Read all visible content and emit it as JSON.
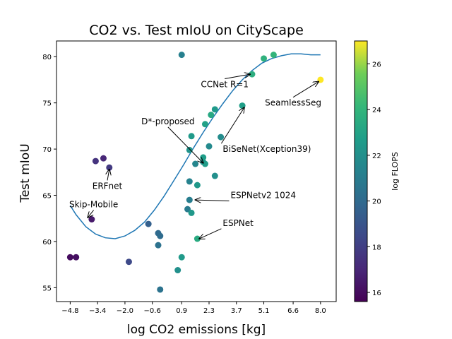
{
  "chart_data": {
    "type": "scatter",
    "title": "CO2 vs. Test mIoU on CityScape",
    "xlabel": "log CO2 emissions [kg]",
    "ylabel": "Test mIoU",
    "xlim": [
      -5.5,
      8.8
    ],
    "ylim": [
      53.5,
      81.7
    ],
    "xticks": [
      -4.8,
      -3.4,
      -2.0,
      -0.6,
      0.9,
      2.3,
      3.7,
      5.1,
      6.6,
      8.0
    ],
    "xtick_labels": [
      "−4.8",
      "−3.4",
      "−2.0",
      "−0.6",
      "0.9",
      "2.3",
      "3.7",
      "5.1",
      "6.6",
      "8.0"
    ],
    "yticks": [
      55,
      60,
      65,
      70,
      75,
      80
    ],
    "ytick_labels": [
      "55",
      "60",
      "65",
      "70",
      "75",
      "80"
    ],
    "grid": false,
    "colorbar": {
      "label": "log FLOPS",
      "range": [
        15.6,
        27.0
      ],
      "ticks": [
        16,
        18,
        20,
        22,
        24,
        26
      ],
      "tick_labels": [
        "16",
        "18",
        "20",
        "22",
        "24",
        "26"
      ],
      "colormap": "viridis"
    },
    "points": [
      {
        "x": -4.8,
        "y": 58.3,
        "c": 16.0
      },
      {
        "x": -4.5,
        "y": 58.3,
        "c": 16.1
      },
      {
        "x": -3.7,
        "y": 62.4,
        "c": 16.5
      },
      {
        "x": -3.5,
        "y": 68.7,
        "c": 17.5
      },
      {
        "x": -3.1,
        "y": 69.0,
        "c": 17.0
      },
      {
        "x": -2.8,
        "y": 68.0,
        "c": 17.8
      },
      {
        "x": -1.8,
        "y": 57.8,
        "c": 18.5
      },
      {
        "x": -0.8,
        "y": 61.9,
        "c": 19.5
      },
      {
        "x": -0.3,
        "y": 60.9,
        "c": 20.0
      },
      {
        "x": -0.2,
        "y": 60.6,
        "c": 20.1
      },
      {
        "x": -0.3,
        "y": 59.6,
        "c": 20.4
      },
      {
        "x": -0.2,
        "y": 54.8,
        "c": 20.5
      },
      {
        "x": 0.9,
        "y": 80.2,
        "c": 21.2
      },
      {
        "x": 0.7,
        "y": 56.9,
        "c": 22.0
      },
      {
        "x": 0.9,
        "y": 58.3,
        "c": 22.5
      },
      {
        "x": 1.2,
        "y": 63.5,
        "c": 20.9
      },
      {
        "x": 1.3,
        "y": 64.5,
        "c": 21.0
      },
      {
        "x": 1.3,
        "y": 66.5,
        "c": 21.3
      },
      {
        "x": 1.4,
        "y": 63.1,
        "c": 22.4
      },
      {
        "x": 1.3,
        "y": 69.9,
        "c": 22.2
      },
      {
        "x": 1.4,
        "y": 71.4,
        "c": 22.5
      },
      {
        "x": 1.6,
        "y": 68.4,
        "c": 21.5
      },
      {
        "x": 1.7,
        "y": 66.1,
        "c": 22.4
      },
      {
        "x": 1.7,
        "y": 60.3,
        "c": 23.4
      },
      {
        "x": 2.0,
        "y": 68.6,
        "c": 21.9
      },
      {
        "x": 2.0,
        "y": 69.1,
        "c": 22.7
      },
      {
        "x": 2.1,
        "y": 68.4,
        "c": 22.6
      },
      {
        "x": 2.1,
        "y": 72.7,
        "c": 22.9
      },
      {
        "x": 2.3,
        "y": 70.3,
        "c": 21.7
      },
      {
        "x": 2.4,
        "y": 73.7,
        "c": 23.3
      },
      {
        "x": 2.6,
        "y": 74.3,
        "c": 22.5
      },
      {
        "x": 2.6,
        "y": 67.1,
        "c": 22.0
      },
      {
        "x": 2.9,
        "y": 71.3,
        "c": 21.8
      },
      {
        "x": 4.0,
        "y": 74.7,
        "c": 22.8
      },
      {
        "x": 4.5,
        "y": 78.1,
        "c": 23.6
      },
      {
        "x": 5.1,
        "y": 79.8,
        "c": 23.8
      },
      {
        "x": 5.6,
        "y": 80.2,
        "c": 24.0
      },
      {
        "x": 8.0,
        "y": 77.5,
        "c": 27.0
      }
    ],
    "fit_curve": [
      {
        "x": -4.8,
        "y": 63.9
      },
      {
        "x": -4.5,
        "y": 62.9
      },
      {
        "x": -4.0,
        "y": 61.6
      },
      {
        "x": -3.5,
        "y": 60.8
      },
      {
        "x": -3.0,
        "y": 60.4
      },
      {
        "x": -2.5,
        "y": 60.3
      },
      {
        "x": -2.0,
        "y": 60.6
      },
      {
        "x": -1.5,
        "y": 61.2
      },
      {
        "x": -1.0,
        "y": 62.1
      },
      {
        "x": -0.5,
        "y": 63.4
      },
      {
        "x": 0.0,
        "y": 64.9
      },
      {
        "x": 0.5,
        "y": 66.6
      },
      {
        "x": 1.0,
        "y": 68.3
      },
      {
        "x": 1.5,
        "y": 70.1
      },
      {
        "x": 2.0,
        "y": 71.8
      },
      {
        "x": 2.5,
        "y": 73.4
      },
      {
        "x": 3.0,
        "y": 74.9
      },
      {
        "x": 3.5,
        "y": 76.3
      },
      {
        "x": 4.0,
        "y": 77.5
      },
      {
        "x": 4.5,
        "y": 78.5
      },
      {
        "x": 5.0,
        "y": 79.3
      },
      {
        "x": 5.5,
        "y": 79.8
      },
      {
        "x": 6.0,
        "y": 80.1
      },
      {
        "x": 6.5,
        "y": 80.3
      },
      {
        "x": 7.0,
        "y": 80.3
      },
      {
        "x": 7.5,
        "y": 80.2
      },
      {
        "x": 8.0,
        "y": 80.2
      }
    ],
    "annotations": [
      {
        "text": "CCNet R=1",
        "x": 3.1,
        "y": 77.0,
        "target_x": 4.4,
        "target_y": 78.1,
        "anchor": "middle"
      },
      {
        "text": "SeamlessSeg",
        "x": 6.6,
        "y": 75.0,
        "target_x": 7.9,
        "target_y": 77.3,
        "anchor": "middle"
      },
      {
        "text": "D*-proposed",
        "x": 0.2,
        "y": 73.0,
        "target_x": 2.0,
        "target_y": 68.5,
        "anchor": "middle"
      },
      {
        "text": "BiSeNet(Xception39)",
        "x": 3.0,
        "y": 70.0,
        "target_x": 4.1,
        "target_y": 74.5,
        "anchor": "start"
      },
      {
        "text": "ERFnet",
        "x": -2.9,
        "y": 66.0,
        "target_x": -2.8,
        "target_y": 67.8,
        "anchor": "middle"
      },
      {
        "text": "Skip-Mobile",
        "x": -3.6,
        "y": 64.0,
        "target_x": -3.9,
        "target_y": 62.6,
        "anchor": "middle"
      },
      {
        "text": "ESPNetv2 1024",
        "x": 3.4,
        "y": 65.0,
        "target_x": 1.6,
        "target_y": 64.5,
        "anchor": "start"
      },
      {
        "text": "ESPNet",
        "x": 3.0,
        "y": 62.0,
        "target_x": 1.8,
        "target_y": 60.3,
        "anchor": "start"
      }
    ]
  }
}
